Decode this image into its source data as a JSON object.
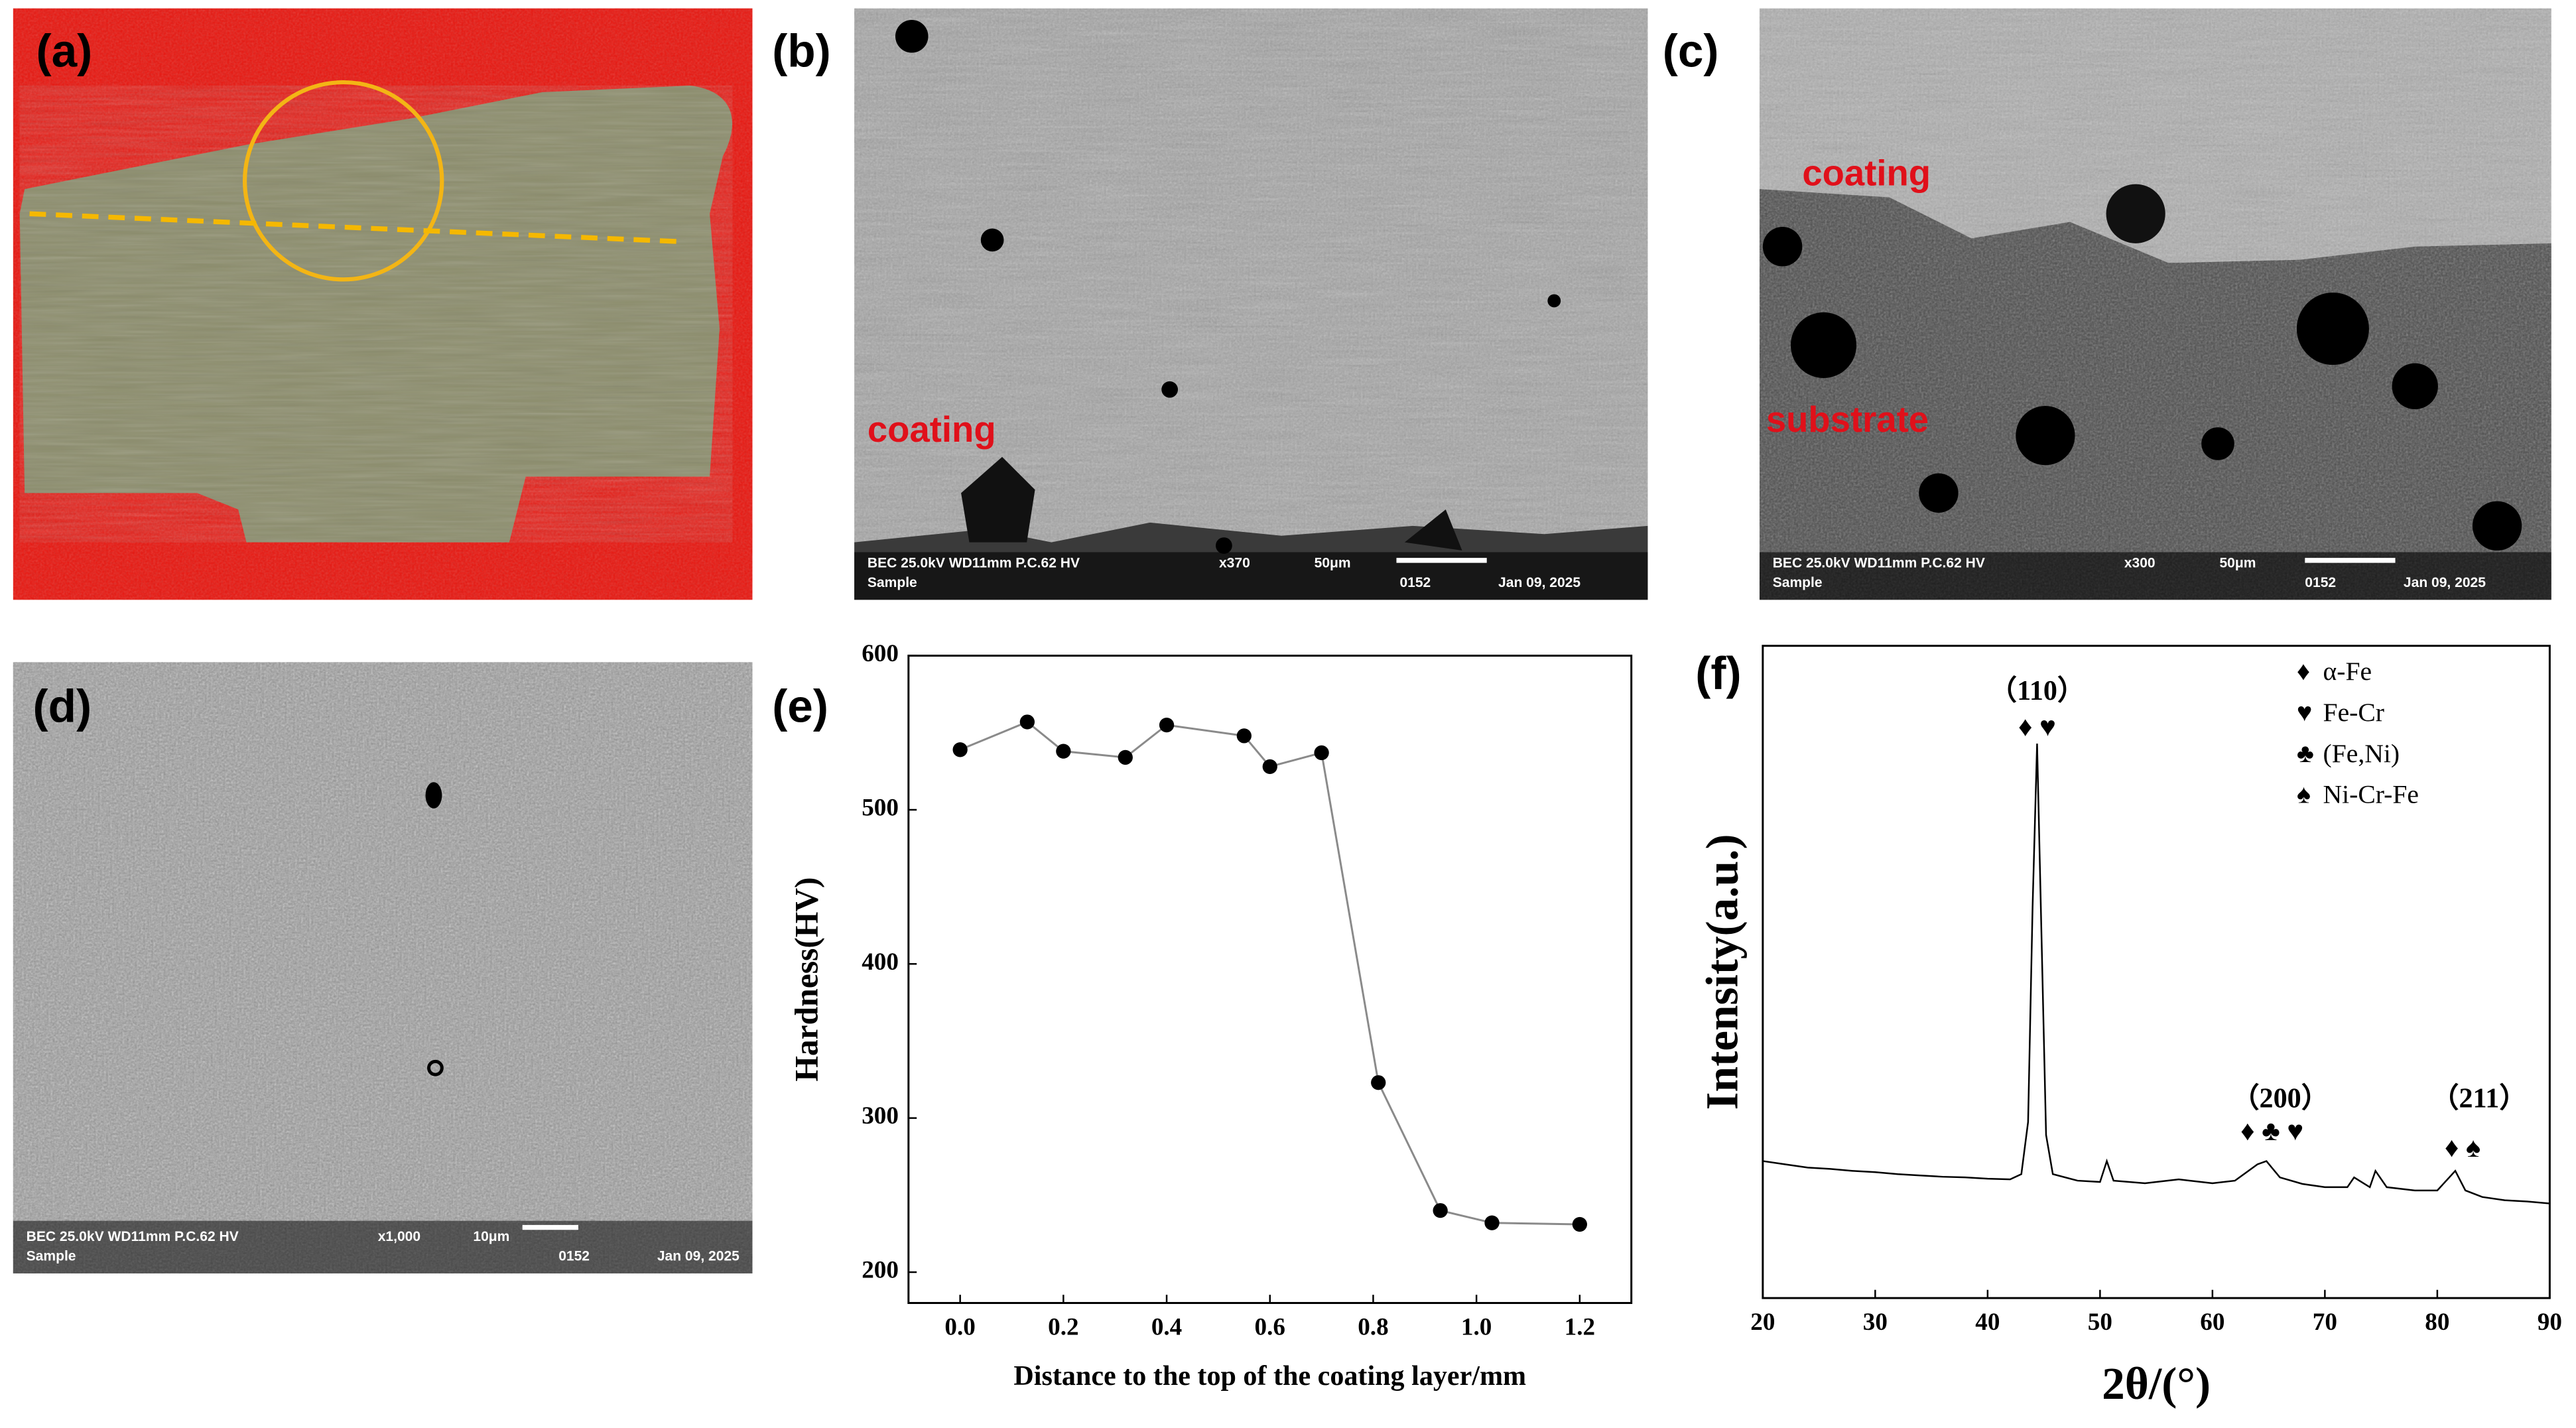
{
  "panels": [
    {
      "label": "(a)"
    },
    {
      "label": "(b)",
      "annotations": [
        "coating"
      ],
      "info": [
        "BEC 25.0kV WD11mm P.C.62  HV",
        "x370",
        "50μm",
        "Sample",
        "0152",
        "Jan 09, 2025"
      ]
    },
    {
      "label": "(c)",
      "annotations": [
        "coating",
        "substrate"
      ],
      "info": [
        "BEC 25.0kV WD11mm P.C.62  HV",
        "x300",
        "50μm",
        "Sample",
        "0152",
        "Jan 09, 2025"
      ]
    },
    {
      "label": "(d)",
      "info": [
        "BEC 25.0kV WD11mm P.C.62  HV",
        "x1,000",
        "10μm",
        "Sample",
        "0152",
        "Jan 09, 2025"
      ]
    }
  ],
  "chart_data": [
    {
      "type": "line",
      "label": "(e)",
      "xlabel": "Distance to the top of the coating  layer/mm",
      "ylabel": "Hardness(HV)",
      "x": [
        0.0,
        0.13,
        0.2,
        0.32,
        0.4,
        0.55,
        0.6,
        0.7,
        0.81,
        0.93,
        1.03,
        1.2
      ],
      "values": [
        539,
        557,
        538,
        534,
        555,
        548,
        528,
        537,
        323,
        240,
        232,
        231
      ],
      "color": "#000000",
      "line_color": "#8a8a8a",
      "markers": true,
      "xlim": [
        -0.1,
        1.3
      ],
      "ylim": [
        180,
        600
      ],
      "xticks": [
        {
          "value": 0,
          "label": "0.0"
        },
        0.2,
        0.4,
        0.6,
        0.8,
        {
          "value": 1,
          "label": "1.0"
        },
        1.2
      ],
      "yticks": [
        200,
        300,
        400,
        500,
        600
      ]
    },
    {
      "type": "line",
      "label": "(f)",
      "xlabel": "2θ/(°)",
      "ylabel": "Intensity(a.u.)",
      "x": [
        20,
        22,
        24,
        26,
        28,
        30,
        32,
        34,
        36,
        38,
        40,
        42,
        43,
        43.6,
        44.0,
        44.4,
        44.8,
        45.2,
        45.8,
        48,
        50,
        50.6,
        51.2,
        54,
        57,
        60,
        62,
        64,
        64.8,
        66,
        68,
        70,
        72,
        72.6,
        74,
        74.5,
        75.5,
        78,
        80,
        81.6,
        82.5,
        84,
        86,
        88,
        90
      ],
      "values": [
        21,
        20.5,
        20,
        19.8,
        19.5,
        19.3,
        19,
        18.8,
        18.6,
        18.5,
        18.3,
        18.2,
        19,
        27,
        60,
        85,
        55,
        25,
        19,
        18,
        17.8,
        21,
        18,
        17.6,
        18.2,
        17.6,
        18,
        20.5,
        21,
        18.5,
        17.5,
        17,
        17,
        18.5,
        17,
        19.5,
        17,
        16.5,
        16.5,
        19.5,
        16.5,
        15.5,
        15,
        14.8,
        14.5
      ],
      "color": "#000000",
      "markers": false,
      "xlim": [
        20,
        90
      ],
      "ylim": [
        0,
        100
      ],
      "xticks": [
        20,
        30,
        40,
        50,
        60,
        70,
        80,
        90
      ],
      "annotations": [
        "（110）",
        "♦ ♥",
        "（200）",
        "♦ ♣ ♥",
        "（211）",
        "♦ ♠"
      ],
      "legend_items": [
        {
          "symbol": "♦",
          "label": "α-Fe"
        },
        {
          "symbol": "♥",
          "label": "Fe-Cr"
        },
        {
          "symbol": "♣",
          "label": "(Fe,Ni)"
        },
        {
          "symbol": "♠",
          "label": "Ni-Cr-Fe"
        }
      ]
    }
  ]
}
